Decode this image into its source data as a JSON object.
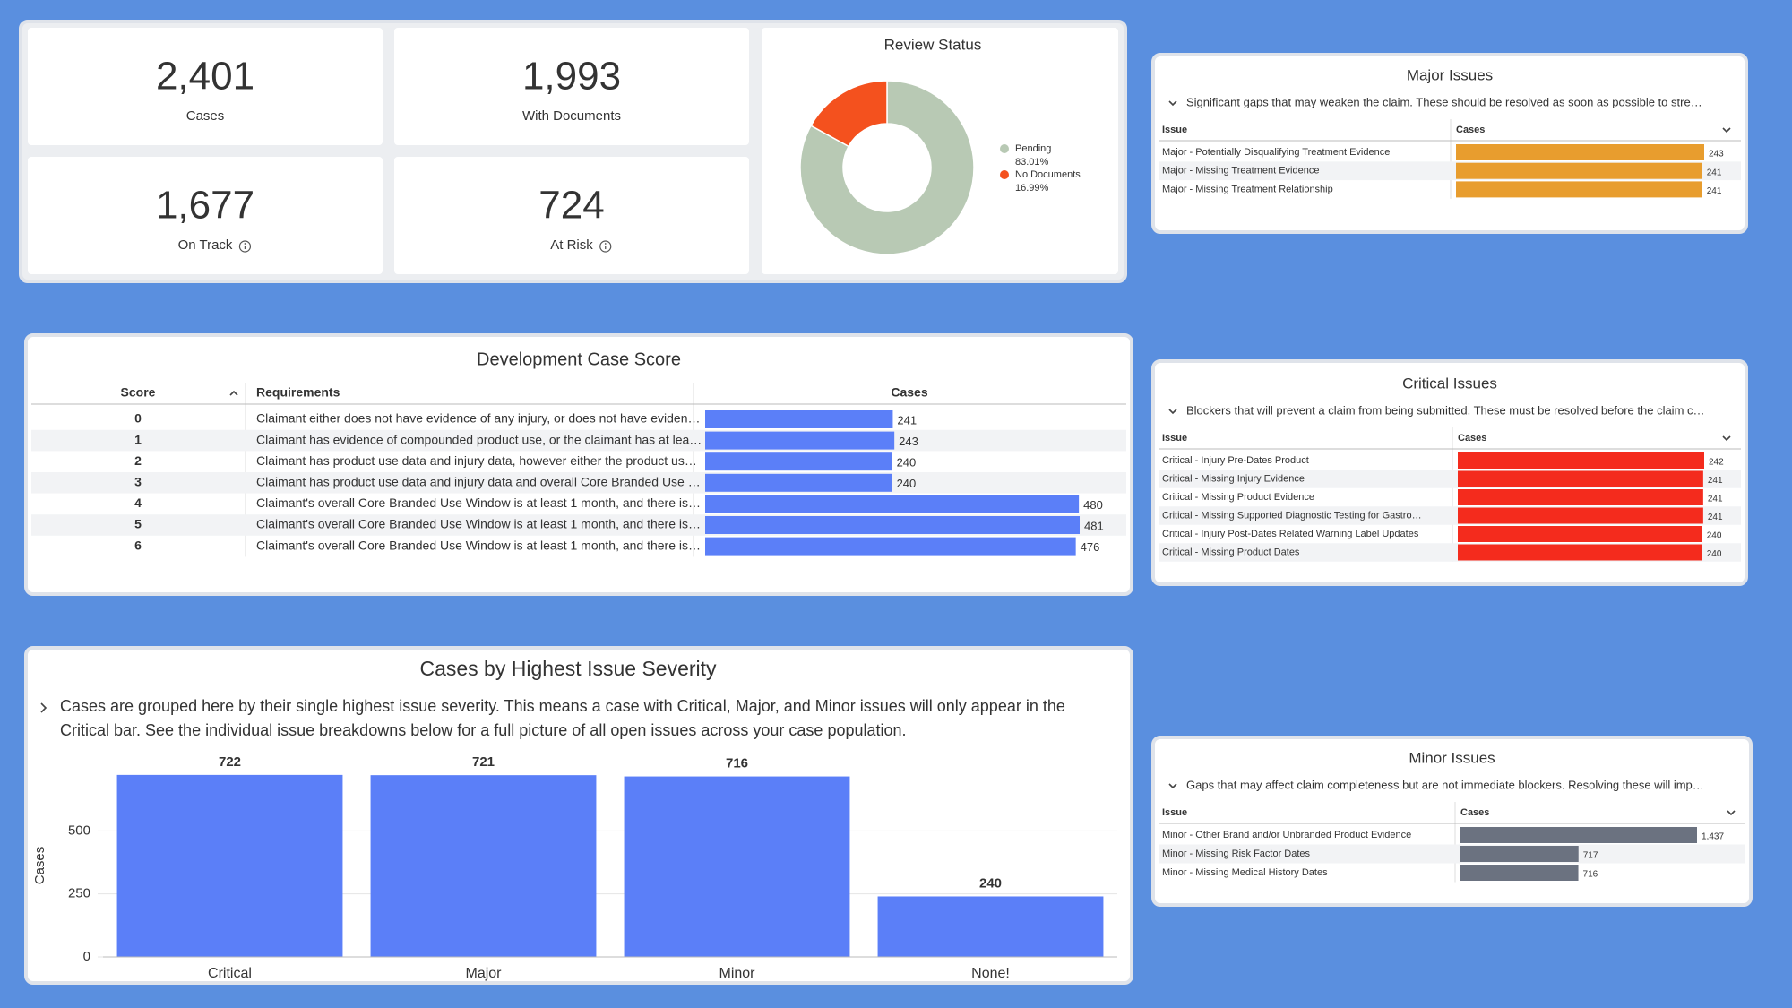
{
  "kpis": [
    {
      "value": "2,401",
      "label": "Cases"
    },
    {
      "value": "1,993",
      "label": "With Documents"
    },
    {
      "value": "1,677",
      "label": "On Track"
    },
    {
      "value": "724",
      "label": "At Risk"
    }
  ],
  "chart_data": [
    {
      "type": "donut",
      "title": "Review Status",
      "categories": [
        "Pending",
        "No Documents"
      ],
      "values": [
        83.01,
        16.99
      ],
      "value_labels": [
        "83.01%",
        "16.99%"
      ],
      "colors": [
        "#b8c9b4",
        "#f4511e"
      ]
    },
    {
      "type": "table-bar",
      "title": "Development Case Score",
      "columns": [
        "Score",
        "Requirements",
        "Cases"
      ],
      "categories": [
        0,
        1,
        2,
        3,
        4,
        5,
        6
      ],
      "requirements": [
        "Claimant either does not have evidence of any injury, or does not have eviden…",
        "Claimant has evidence of compounded product use, or the claimant has at lea…",
        "Claimant has product use data and injury data, however either the product us…",
        "Claimant has product use data and injury data and overall Core Branded Use …",
        "Claimant's overall Core Branded Use Window is at least 1 month, and there is…",
        "Claimant's overall Core Branded Use Window is at least 1 month, and there is…",
        "Claimant's overall Core Branded Use Window is at least 1 month, and there is…"
      ],
      "values": [
        241,
        243,
        240,
        240,
        480,
        481,
        476
      ],
      "color": "#5b7ff8"
    },
    {
      "type": "table-bar",
      "title": "Major Issues",
      "subtitle": "Significant gaps that may weaken the claim. These should be resolved as soon as possible to stre…",
      "columns": [
        "Issue",
        "Cases"
      ],
      "categories": [
        "Major - Potentially Disqualifying Treatment Evidence",
        "Major - Missing Treatment Evidence",
        "Major - Missing Treatment Relationship"
      ],
      "values": [
        243,
        241,
        241
      ],
      "color": "#e89d2e"
    },
    {
      "type": "table-bar",
      "title": "Critical Issues",
      "subtitle": "Blockers that will prevent a claim from being submitted. These must be resolved before the claim c…",
      "columns": [
        "Issue",
        "Cases"
      ],
      "categories": [
        "Critical - Injury Pre-Dates Product",
        "Critical - Missing Injury Evidence",
        "Critical - Missing Product Evidence",
        "Critical - Missing Supported Diagnostic Testing for Gastro…",
        "Critical - Injury Post-Dates Related Warning Label Updates",
        "Critical - Missing Product Dates"
      ],
      "values": [
        242,
        241,
        241,
        241,
        240,
        240
      ],
      "color": "#f42b1d"
    },
    {
      "type": "table-bar",
      "title": "Minor Issues",
      "subtitle": "Gaps that may affect claim completeness but are not immediate blockers. Resolving these will imp…",
      "columns": [
        "Issue",
        "Cases"
      ],
      "categories": [
        "Minor - Other Brand and/or Unbranded Product Evidence",
        "Minor - Missing Risk Factor Dates",
        "Minor - Missing Medical History Dates"
      ],
      "values": [
        1437,
        717,
        716
      ],
      "value_labels": [
        "1,437",
        "717",
        "716"
      ],
      "color": "#6b7280"
    },
    {
      "type": "bar",
      "title": "Cases by Highest Issue Severity",
      "subtitle": "Cases are grouped here by their single highest issue severity. This means a case with Critical, Major, and Minor issues will only appear in the Critical bar. See the individual issue breakdowns below for a full picture of all open issues across your case population.",
      "y_label": "Cases",
      "categories": [
        "Critical",
        "Major",
        "Minor",
        "None!"
      ],
      "values": [
        722,
        721,
        716,
        240
      ],
      "ylim": [
        0,
        750
      ],
      "yticks": [
        0,
        250,
        500
      ],
      "color": "#5b7ff8",
      "grid": true
    }
  ]
}
